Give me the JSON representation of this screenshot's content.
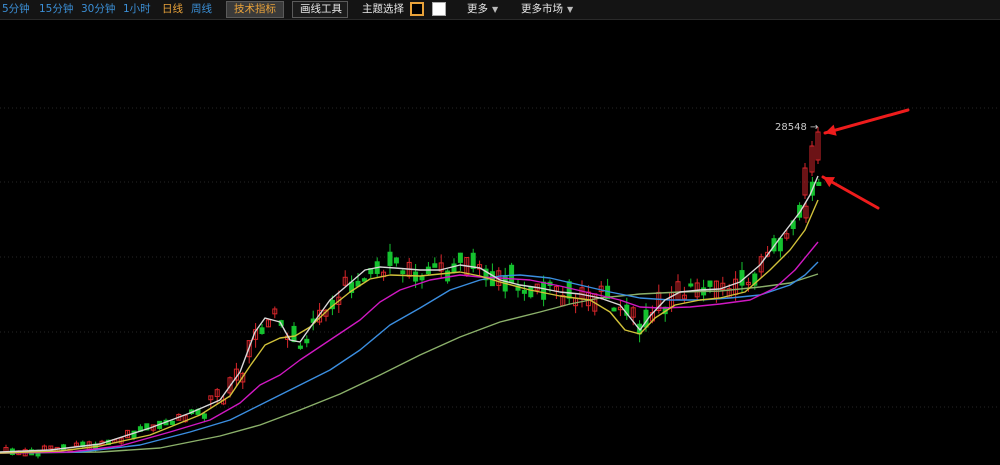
{
  "toolbar": {
    "timeframes": [
      {
        "label": "5分钟",
        "active": false
      },
      {
        "label": "15分钟",
        "active": false
      },
      {
        "label": "30分钟",
        "active": false
      },
      {
        "label": "1小时",
        "active": false
      },
      {
        "label": "日线",
        "active": true
      },
      {
        "label": "周线",
        "active": false
      }
    ],
    "indicators_label": "技术指标",
    "drawing_tools_label": "画线工具",
    "theme_label": "主题选择",
    "more_label": "更多",
    "more_markets_label": "更多市场",
    "dropdown_glyph": "▼"
  },
  "price_tag": {
    "value": "28548",
    "arrow": "→"
  },
  "colors": {
    "up": "#d8262b",
    "down": "#15c22f",
    "accent": "#e8a23a",
    "ma_white": "#d9d9d9",
    "ma_yellow": "#d1c13a",
    "ma_magenta": "#d018c2",
    "ma_blue": "#3b8ee0",
    "ma_green": "#8bb06a",
    "annotation": "#ee1c1c"
  },
  "chart_data": {
    "type": "candlestick",
    "up_color": "red",
    "down_color": "green",
    "moving_averages": [
      "white",
      "yellow",
      "magenta",
      "blue",
      "green"
    ],
    "last_price_label": "28548",
    "grid": true,
    "annotations": [
      "red arrow pointing at latest candle",
      "red arrow pointing at end of white moving average"
    ]
  }
}
